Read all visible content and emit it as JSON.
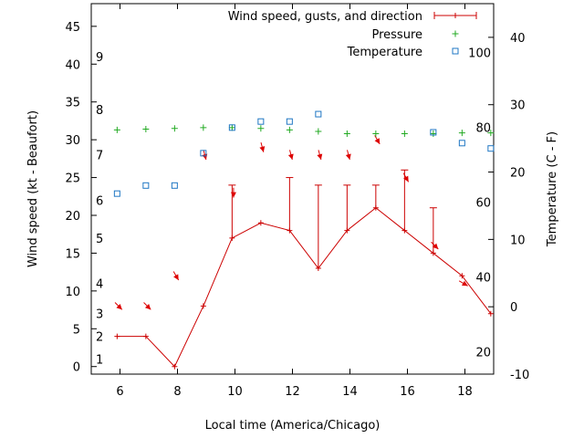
{
  "chart_data": {
    "type": "line",
    "xlabel": "Local time (America/Chicago)",
    "ylabel_left": "Wind speed (kt - Beaufort)",
    "ylabel_right": "Temperature (C - F)",
    "xlim": [
      5,
      19
    ],
    "x_ticks": [
      6,
      8,
      10,
      12,
      14,
      16,
      18
    ],
    "wind_ylim": [
      -1,
      48
    ],
    "wind_ticks": [
      0,
      5,
      10,
      15,
      20,
      25,
      30,
      35,
      40,
      45
    ],
    "beaufort_labels": [
      {
        "label": "1",
        "kt": 1
      },
      {
        "label": "2",
        "kt": 4
      },
      {
        "label": "3",
        "kt": 7
      },
      {
        "label": "4",
        "kt": 11
      },
      {
        "label": "5",
        "kt": 17
      },
      {
        "label": "6",
        "kt": 22
      },
      {
        "label": "7",
        "kt": 28
      },
      {
        "label": "8",
        "kt": 34
      },
      {
        "label": "9",
        "kt": 41
      }
    ],
    "temp_ylim": [
      -10,
      45
    ],
    "temp_c_ticks": [
      -10,
      0,
      10,
      20,
      30,
      40
    ],
    "temp_f_labels": [
      {
        "label": "20",
        "c": -6.67
      },
      {
        "label": "40",
        "c": 4.44
      },
      {
        "label": "60",
        "c": 15.56
      },
      {
        "label": "80",
        "c": 26.67
      },
      {
        "label": "100",
        "c": 37.78
      }
    ],
    "legend": {
      "position": "top-right",
      "entries": [
        "Wind speed, gusts, and direction",
        "Pressure",
        "Temperature"
      ]
    },
    "colors": {
      "wind": "#cc0000",
      "pressure": "#22aa22",
      "temperature": "#1f77c4",
      "arrow": "#dd0000"
    },
    "wind": {
      "x": [
        5.9,
        6.9,
        7.9,
        8.9,
        9.9,
        10.9,
        11.9,
        12.9,
        13.9,
        14.9,
        15.9,
        16.9,
        17.9,
        18.9
      ],
      "speed": [
        4,
        4,
        0,
        8,
        17,
        19,
        18,
        13,
        18,
        21,
        18,
        15,
        12,
        7
      ],
      "gust": [
        4,
        4,
        0,
        8,
        24,
        19,
        25,
        24,
        24,
        24,
        26,
        21,
        12,
        7
      ],
      "arrow_kt": [
        8,
        8,
        12,
        28,
        23,
        29,
        28,
        28,
        28,
        30,
        25,
        16,
        11
      ],
      "arrow_dir_deg": [
        135,
        135,
        150,
        165,
        180,
        165,
        165,
        165,
        165,
        150,
        150,
        135,
        120
      ]
    },
    "pressure": {
      "x": [
        5.9,
        6.9,
        7.9,
        8.9,
        9.9,
        10.9,
        11.9,
        12.9,
        13.9,
        14.9,
        15.9,
        16.9,
        17.9,
        18.9
      ],
      "values_wind_axis": [
        31.3,
        31.4,
        31.5,
        31.6,
        31.6,
        31.5,
        31.3,
        31.1,
        30.8,
        30.8,
        30.8,
        30.8,
        30.9,
        30.9
      ]
    },
    "temperature": {
      "x": [
        5.9,
        6.9,
        7.9,
        8.9,
        9.9,
        10.9,
        11.9,
        12.9,
        13.9,
        14.9,
        15.9,
        16.9,
        17.9,
        18.9
      ],
      "c": [
        16.8,
        18.0,
        18.0,
        22.8,
        26.6,
        27.5,
        27.5,
        28.6,
        null,
        null,
        null,
        25.9,
        24.3,
        23.5
      ]
    }
  }
}
